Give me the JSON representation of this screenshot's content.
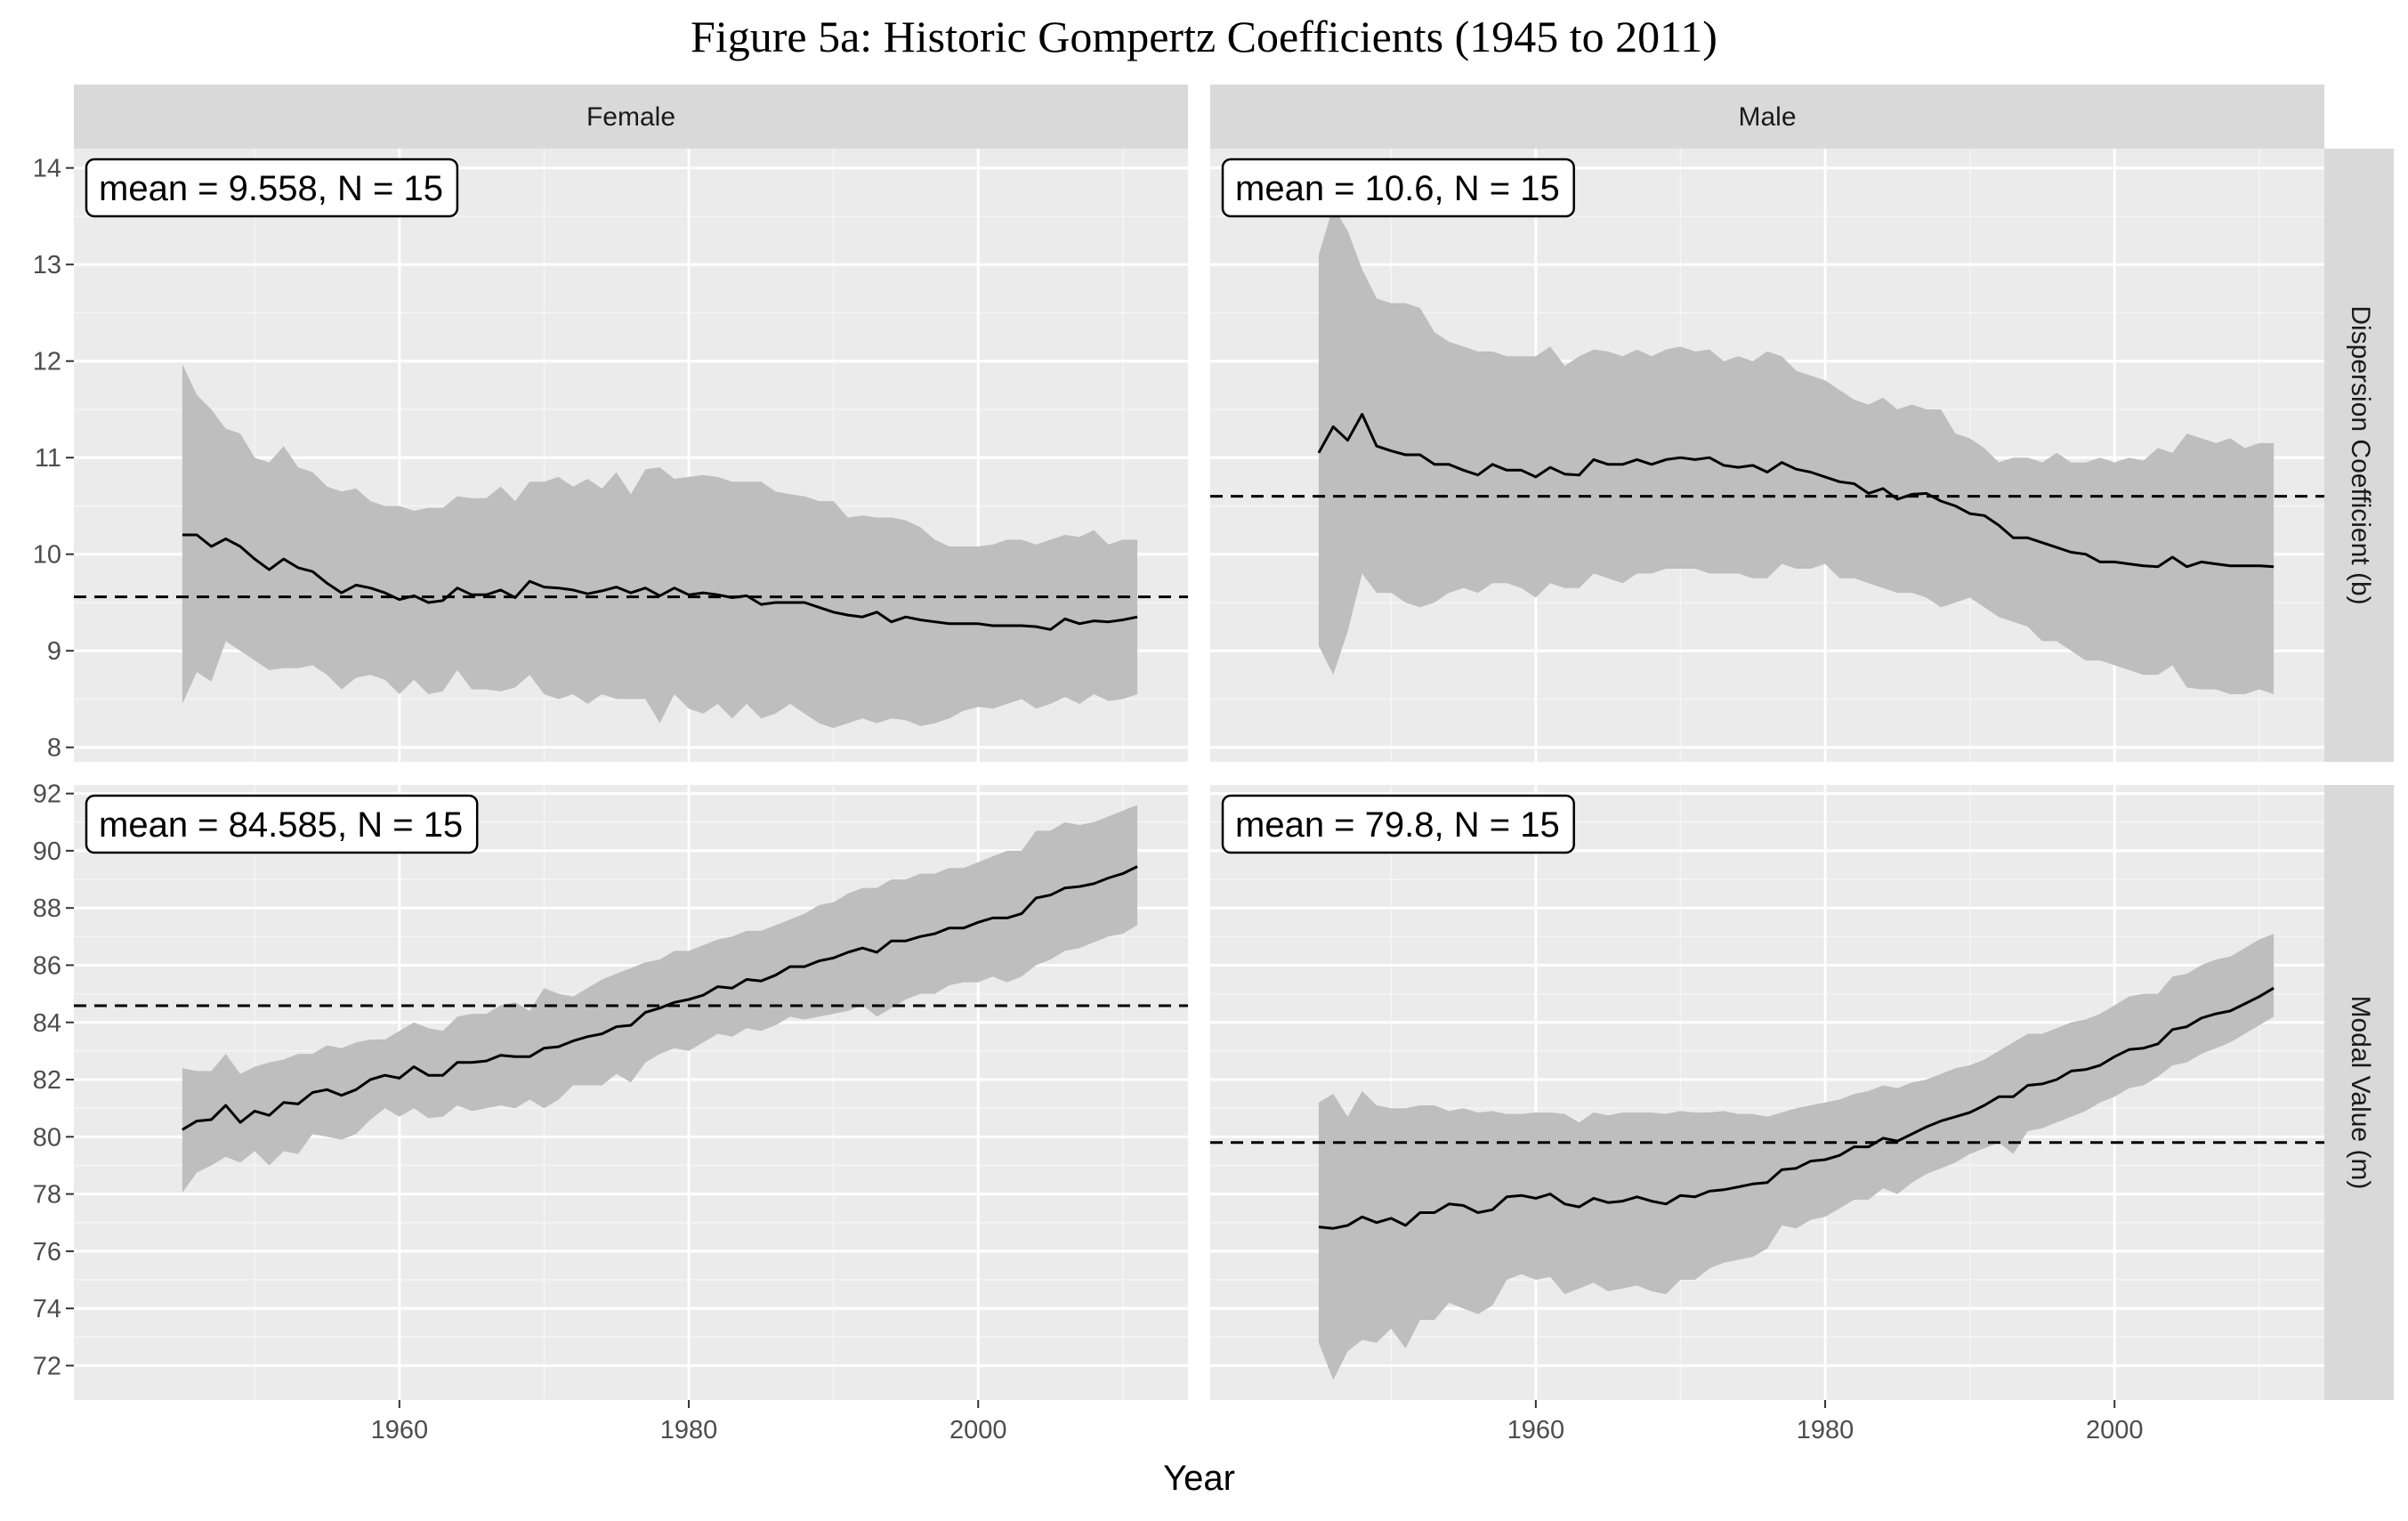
{
  "title": "Figure 5a: Historic Gompertz Coefficients (1945 to 2011)",
  "chart_data": {
    "type": "line",
    "xlabel": "Year",
    "x_ticks": [
      1960,
      1980,
      2000
    ],
    "xlim": [
      1937.5,
      2014.5
    ],
    "columns": [
      "Female",
      "Male"
    ],
    "rows": [
      {
        "label": "Dispersion Coefficient (b)",
        "ylim": [
          7.85,
          14.2
        ],
        "y_ticks": [
          8,
          9,
          10,
          11,
          12,
          13,
          14
        ]
      },
      {
        "label": "Modal Value (m)",
        "ylim": [
          70.8,
          92.3
        ],
        "y_ticks": [
          72,
          74,
          76,
          78,
          80,
          82,
          84,
          86,
          88,
          90,
          92
        ]
      }
    ],
    "style": {
      "ribbon_color": "#bebebe",
      "line_color": "#000000",
      "panel_bg": "#ebebeb",
      "strip_bg": "#d9d9d9",
      "grid": true
    },
    "panels": [
      {
        "column": "Female",
        "row": "Dispersion Coefficient (b)",
        "annotation": "mean = 9.558, N = 15",
        "mean": 9.558,
        "start_year": 1945,
        "values": [
          10.2,
          10.2,
          10.08,
          10.16,
          10.08,
          9.95,
          9.84,
          9.95,
          9.86,
          9.82,
          9.7,
          9.6,
          9.68,
          9.65,
          9.6,
          9.53,
          9.57,
          9.5,
          9.52,
          9.65,
          9.58,
          9.58,
          9.63,
          9.55,
          9.72,
          9.66,
          9.65,
          9.63,
          9.59,
          9.62,
          9.66,
          9.6,
          9.65,
          9.57,
          9.65,
          9.58,
          9.6,
          9.58,
          9.55,
          9.57,
          9.48,
          9.5,
          9.5,
          9.5,
          9.45,
          9.4,
          9.37,
          9.35,
          9.4,
          9.3,
          9.35,
          9.32,
          9.3,
          9.28,
          9.28,
          9.28,
          9.26,
          9.26,
          9.26,
          9.25,
          9.22,
          9.33,
          9.28,
          9.31,
          9.3,
          9.32,
          9.35
        ],
        "lower": [
          8.45,
          8.78,
          8.68,
          9.1,
          9.0,
          8.9,
          8.8,
          8.82,
          8.82,
          8.85,
          8.75,
          8.6,
          8.72,
          8.75,
          8.7,
          8.55,
          8.7,
          8.55,
          8.58,
          8.8,
          8.6,
          8.6,
          8.58,
          8.62,
          8.75,
          8.55,
          8.5,
          8.55,
          8.45,
          8.55,
          8.5,
          8.5,
          8.5,
          8.25,
          8.55,
          8.4,
          8.35,
          8.45,
          8.3,
          8.45,
          8.3,
          8.35,
          8.45,
          8.35,
          8.25,
          8.2,
          8.25,
          8.3,
          8.25,
          8.3,
          8.28,
          8.22,
          8.25,
          8.3,
          8.38,
          8.42,
          8.4,
          8.45,
          8.5,
          8.4,
          8.45,
          8.52,
          8.45,
          8.55,
          8.48,
          8.5,
          8.55
        ],
        "upper": [
          11.97,
          11.65,
          11.5,
          11.3,
          11.25,
          11.0,
          10.95,
          11.12,
          10.9,
          10.85,
          10.7,
          10.65,
          10.68,
          10.55,
          10.5,
          10.5,
          10.45,
          10.48,
          10.48,
          10.6,
          10.58,
          10.58,
          10.7,
          10.55,
          10.75,
          10.75,
          10.8,
          10.7,
          10.78,
          10.68,
          10.85,
          10.62,
          10.88,
          10.9,
          10.78,
          10.8,
          10.82,
          10.8,
          10.75,
          10.75,
          10.75,
          10.65,
          10.62,
          10.6,
          10.55,
          10.55,
          10.38,
          10.4,
          10.38,
          10.38,
          10.35,
          10.28,
          10.15,
          10.08,
          10.08,
          10.08,
          10.1,
          10.15,
          10.15,
          10.1,
          10.15,
          10.2,
          10.18,
          10.25,
          10.1,
          10.15,
          10.15
        ]
      },
      {
        "column": "Male",
        "row": "Dispersion Coefficient (b)",
        "annotation": "mean = 10.6, N = 15",
        "mean": 10.6,
        "start_year": 1945,
        "values": [
          11.05,
          11.32,
          11.18,
          11.45,
          11.12,
          11.07,
          11.03,
          11.03,
          10.93,
          10.93,
          10.87,
          10.82,
          10.93,
          10.87,
          10.87,
          10.8,
          10.9,
          10.83,
          10.82,
          10.98,
          10.93,
          10.93,
          10.98,
          10.93,
          10.98,
          11.0,
          10.98,
          11.0,
          10.92,
          10.9,
          10.92,
          10.85,
          10.95,
          10.88,
          10.85,
          10.8,
          10.75,
          10.73,
          10.63,
          10.68,
          10.57,
          10.62,
          10.63,
          10.55,
          10.5,
          10.42,
          10.4,
          10.3,
          10.17,
          10.17,
          10.12,
          10.07,
          10.02,
          10.0,
          9.92,
          9.92,
          9.9,
          9.88,
          9.87,
          9.97,
          9.87,
          9.92,
          9.9,
          9.88,
          9.88,
          9.88,
          9.87
        ],
        "lower": [
          9.05,
          8.75,
          9.2,
          9.8,
          9.6,
          9.6,
          9.5,
          9.45,
          9.5,
          9.6,
          9.65,
          9.6,
          9.7,
          9.7,
          9.65,
          9.55,
          9.7,
          9.65,
          9.65,
          9.8,
          9.75,
          9.7,
          9.8,
          9.8,
          9.85,
          9.85,
          9.85,
          9.8,
          9.8,
          9.8,
          9.75,
          9.75,
          9.9,
          9.85,
          9.85,
          9.9,
          9.75,
          9.75,
          9.7,
          9.65,
          9.6,
          9.6,
          9.55,
          9.45,
          9.5,
          9.55,
          9.45,
          9.35,
          9.3,
          9.25,
          9.1,
          9.1,
          9.0,
          8.9,
          8.9,
          8.85,
          8.8,
          8.75,
          8.75,
          8.85,
          8.62,
          8.6,
          8.6,
          8.55,
          8.55,
          8.6,
          8.55
        ],
        "upper": [
          13.1,
          13.6,
          13.35,
          12.95,
          12.65,
          12.6,
          12.6,
          12.55,
          12.3,
          12.2,
          12.15,
          12.1,
          12.1,
          12.05,
          12.05,
          12.05,
          12.15,
          11.95,
          12.05,
          12.12,
          12.1,
          12.05,
          12.12,
          12.05,
          12.12,
          12.15,
          12.1,
          12.12,
          12.0,
          12.05,
          12.0,
          12.1,
          12.05,
          11.9,
          11.85,
          11.8,
          11.7,
          11.6,
          11.55,
          11.62,
          11.5,
          11.55,
          11.5,
          11.5,
          11.25,
          11.2,
          11.1,
          10.95,
          11.0,
          11.0,
          10.95,
          11.05,
          10.95,
          10.95,
          11.0,
          10.95,
          11.0,
          10.97,
          11.1,
          11.05,
          11.25,
          11.2,
          11.15,
          11.2,
          11.1,
          11.15,
          11.15
        ]
      },
      {
        "column": "Female",
        "row": "Modal Value (m)",
        "annotation": "mean = 84.585, N = 15",
        "mean": 84.585,
        "start_year": 1945,
        "values": [
          80.25,
          80.55,
          80.6,
          81.1,
          80.5,
          80.9,
          80.75,
          81.2,
          81.15,
          81.55,
          81.65,
          81.45,
          81.65,
          82.0,
          82.15,
          82.05,
          82.45,
          82.15,
          82.15,
          82.6,
          82.6,
          82.65,
          82.85,
          82.8,
          82.8,
          83.1,
          83.15,
          83.35,
          83.5,
          83.6,
          83.85,
          83.9,
          84.35,
          84.5,
          84.7,
          84.8,
          84.95,
          85.25,
          85.2,
          85.5,
          85.45,
          85.65,
          85.95,
          85.95,
          86.15,
          86.25,
          86.45,
          86.6,
          86.45,
          86.85,
          86.85,
          87.0,
          87.1,
          87.3,
          87.3,
          87.5,
          87.65,
          87.65,
          87.8,
          88.35,
          88.45,
          88.7,
          88.75,
          88.85,
          89.05,
          89.2,
          89.45
        ],
        "lower": [
          78.05,
          78.75,
          79.0,
          79.3,
          79.1,
          79.5,
          79.0,
          79.5,
          79.4,
          80.1,
          80.0,
          79.9,
          80.1,
          80.6,
          81.0,
          80.7,
          81.0,
          80.65,
          80.7,
          81.1,
          80.9,
          81.0,
          81.1,
          81.0,
          81.3,
          81.0,
          81.3,
          81.8,
          81.8,
          81.8,
          82.2,
          81.9,
          82.6,
          82.9,
          83.1,
          83.0,
          83.3,
          83.6,
          83.5,
          83.8,
          83.7,
          83.9,
          84.2,
          84.1,
          84.2,
          84.3,
          84.4,
          84.6,
          84.2,
          84.5,
          84.8,
          85.0,
          85.0,
          85.3,
          85.4,
          85.4,
          85.6,
          85.4,
          85.6,
          86.0,
          86.2,
          86.5,
          86.6,
          86.8,
          87.0,
          87.1,
          87.4
        ],
        "upper": [
          82.4,
          82.3,
          82.3,
          82.9,
          82.2,
          82.45,
          82.6,
          82.7,
          82.9,
          82.9,
          83.2,
          83.1,
          83.3,
          83.4,
          83.4,
          83.7,
          84.0,
          83.8,
          83.7,
          84.2,
          84.3,
          84.3,
          84.6,
          84.7,
          84.4,
          85.2,
          85.0,
          84.9,
          85.2,
          85.5,
          85.7,
          85.9,
          86.1,
          86.2,
          86.5,
          86.5,
          86.7,
          86.9,
          87.0,
          87.2,
          87.2,
          87.4,
          87.6,
          87.8,
          88.1,
          88.2,
          88.5,
          88.7,
          88.7,
          89.0,
          89.0,
          89.2,
          89.2,
          89.4,
          89.4,
          89.6,
          89.8,
          90.0,
          90.0,
          90.7,
          90.7,
          91.0,
          90.9,
          91.0,
          91.2,
          91.4,
          91.6
        ]
      },
      {
        "column": "Male",
        "row": "Modal Value (m)",
        "annotation": "mean = 79.8, N = 15",
        "mean": 79.8,
        "start_year": 1945,
        "values": [
          76.85,
          76.8,
          76.9,
          77.2,
          77.0,
          77.15,
          76.9,
          77.35,
          77.35,
          77.65,
          77.6,
          77.35,
          77.45,
          77.9,
          77.95,
          77.85,
          78.0,
          77.65,
          77.55,
          77.85,
          77.7,
          77.75,
          77.9,
          77.75,
          77.65,
          77.95,
          77.9,
          78.1,
          78.15,
          78.25,
          78.35,
          78.4,
          78.85,
          78.9,
          79.15,
          79.2,
          79.35,
          79.65,
          79.65,
          79.95,
          79.85,
          80.1,
          80.35,
          80.55,
          80.7,
          80.85,
          81.1,
          81.4,
          81.4,
          81.8,
          81.85,
          82.0,
          82.3,
          82.35,
          82.5,
          82.8,
          83.05,
          83.1,
          83.25,
          83.75,
          83.85,
          84.15,
          84.3,
          84.4,
          84.65,
          84.9,
          85.2
        ],
        "lower": [
          72.8,
          71.5,
          72.5,
          72.9,
          72.8,
          73.3,
          72.6,
          73.6,
          73.6,
          74.2,
          74.0,
          73.8,
          74.1,
          75.0,
          75.2,
          75.0,
          75.1,
          74.5,
          74.7,
          74.9,
          74.6,
          74.7,
          74.8,
          74.6,
          74.5,
          75.0,
          75.0,
          75.4,
          75.6,
          75.7,
          75.8,
          76.1,
          76.9,
          76.8,
          77.1,
          77.2,
          77.5,
          77.8,
          77.8,
          78.2,
          78.0,
          78.4,
          78.7,
          78.9,
          79.1,
          79.4,
          79.6,
          79.8,
          79.4,
          80.2,
          80.3,
          80.5,
          80.7,
          80.9,
          81.2,
          81.4,
          81.7,
          81.8,
          82.1,
          82.5,
          82.6,
          82.9,
          83.1,
          83.3,
          83.6,
          83.9,
          84.2
        ],
        "upper": [
          81.2,
          81.5,
          80.7,
          81.6,
          81.1,
          81.0,
          81.0,
          81.1,
          81.1,
          80.9,
          81.0,
          80.85,
          80.9,
          80.8,
          80.8,
          80.85,
          80.85,
          80.8,
          80.5,
          80.85,
          80.75,
          80.85,
          80.85,
          80.85,
          80.8,
          80.9,
          80.85,
          80.85,
          80.9,
          80.8,
          80.8,
          80.7,
          80.85,
          81.0,
          81.1,
          81.2,
          81.3,
          81.5,
          81.6,
          81.8,
          81.7,
          81.9,
          82.0,
          82.2,
          82.4,
          82.5,
          82.7,
          83.0,
          83.3,
          83.6,
          83.6,
          83.8,
          84.0,
          84.1,
          84.3,
          84.6,
          84.9,
          85.0,
          85.0,
          85.6,
          85.7,
          86.0,
          86.2,
          86.3,
          86.6,
          86.9,
          87.1
        ]
      }
    ]
  }
}
